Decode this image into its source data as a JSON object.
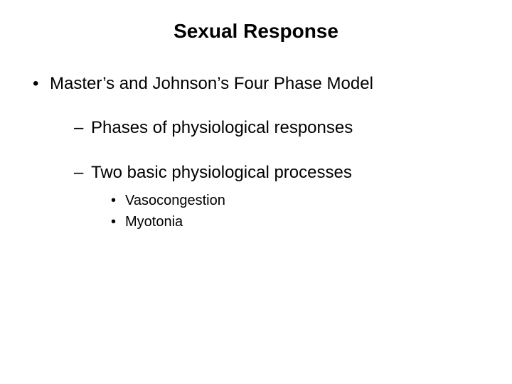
{
  "title": "Sexual Response",
  "bullets": [
    {
      "text": "Master’s and Johnson’s Four Phase Model",
      "children": [
        {
          "text": "Phases of physiological responses"
        },
        {
          "text": "Two basic physiological processes",
          "children": [
            {
              "text": "Vasocongestion"
            },
            {
              "text": "Myotonia"
            }
          ]
        }
      ]
    }
  ],
  "style": {
    "background_color": "#ffffff",
    "text_color": "#000000",
    "font_family": "Arial",
    "title_fontsize": 28,
    "title_weight": "bold",
    "level1_fontsize": 24,
    "level2_fontsize": 24,
    "level3_fontsize": 20,
    "level1_marker": "•",
    "level2_marker": "–",
    "level3_marker": "•",
    "slide_width": 720,
    "slide_height": 540
  }
}
